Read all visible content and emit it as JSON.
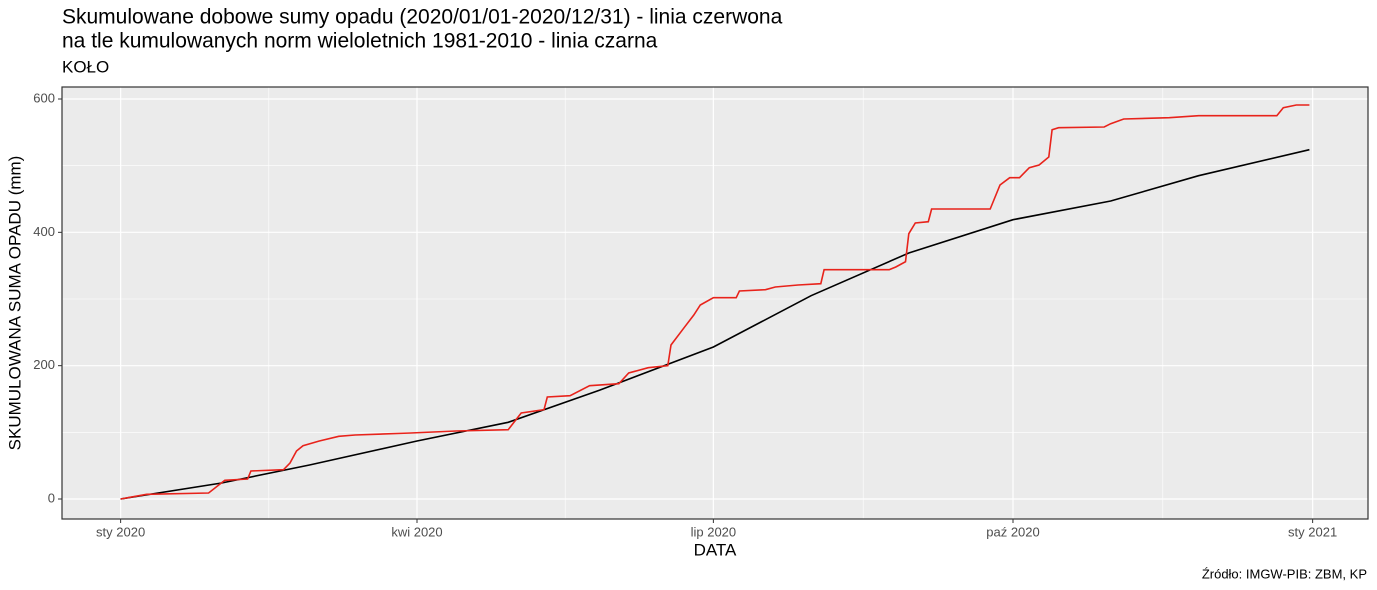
{
  "chart_data": {
    "type": "line",
    "title": [
      "Skumulowane dobowe sumy opadu (2020/01/01-2020/12/31) - linia czerwona",
      "na tle kumulowanych norm wieloletnich 1981-2010 - linia czarna"
    ],
    "subtitle": "KOŁO",
    "x_label": "DATA",
    "y_label": "SKUMULOWANA SUMA OPADU (mm)",
    "caption": "Źródło: IMGW-PIB: ZBM, KP",
    "xlim": [
      -18,
      383
    ],
    "xticks": [
      {
        "value": 0,
        "label": "sty 2020"
      },
      {
        "value": 91,
        "label": "kwi 2020"
      },
      {
        "value": 182,
        "label": "lip 2020"
      },
      {
        "value": 274,
        "label": "paź 2020"
      },
      {
        "value": 366,
        "label": "sty 2021"
      }
    ],
    "ylim": [
      -30,
      618
    ],
    "yticks": [
      0,
      200,
      400,
      600
    ],
    "grid": true,
    "series": [
      {
        "color": "#000000",
        "x": [
          0,
          31,
          58,
          91,
          119,
          147,
          182,
          212,
          242,
          274,
          304,
          331,
          365
        ],
        "values": [
          0,
          24,
          51,
          87,
          115,
          163,
          228,
          305,
          369,
          419,
          447,
          485,
          524
        ]
      },
      {
        "color": "#e8231b",
        "x": [
          0,
          8,
          27,
          32,
          39,
          40,
          50,
          52,
          54,
          56,
          61,
          67,
          72,
          89,
          103,
          119,
          123,
          130,
          131,
          138,
          144,
          153,
          156,
          162,
          168,
          169,
          173,
          176,
          178,
          182,
          189,
          190,
          198,
          201,
          208,
          215,
          216,
          236,
          238,
          241,
          242,
          244,
          248,
          249,
          267,
          270,
          273,
          276,
          279,
          282,
          285,
          286,
          288,
          302,
          304,
          308,
          322,
          331,
          355,
          357,
          361,
          365
        ],
        "values": [
          0,
          7,
          9,
          28,
          30,
          42,
          44,
          54,
          72,
          80,
          87,
          94,
          96,
          99,
          102,
          104,
          129,
          134,
          153,
          155,
          170,
          173,
          189,
          197,
          200,
          231,
          257,
          276,
          291,
          302,
          302,
          312,
          314,
          318,
          321,
          323,
          344,
          344,
          348,
          356,
          398,
          414,
          416,
          435,
          435,
          471,
          482,
          482,
          497,
          501,
          513,
          554,
          557,
          558,
          563,
          570,
          572,
          575,
          575,
          587,
          591,
          591
        ]
      }
    ]
  }
}
